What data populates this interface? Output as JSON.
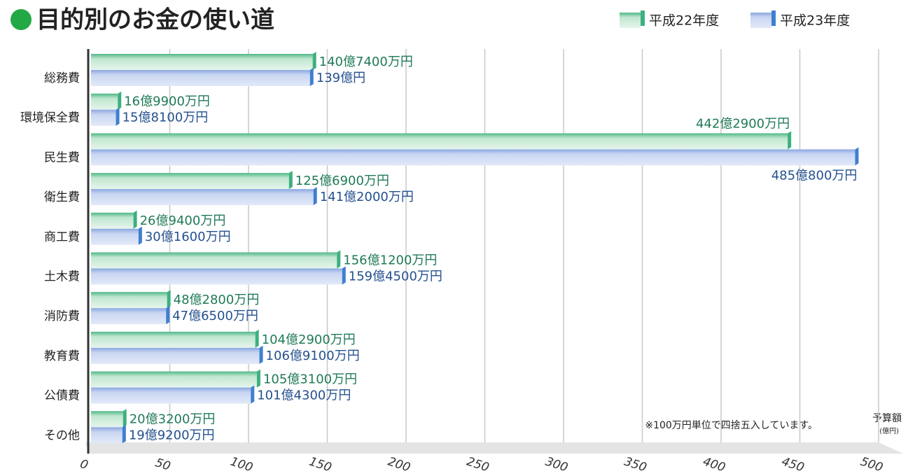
{
  "chart_data": {
    "type": "bar",
    "orientation": "horizontal",
    "title": "目的別のお金の使い道",
    "x_label": "予算額",
    "x_unit_label": "(億円)",
    "annotation": "※100万円単位で四捨五入しています。",
    "categories": [
      "総務費",
      "環境保全費",
      "民生費",
      "衛生費",
      "商工費",
      "土木費",
      "消防費",
      "教育費",
      "公債費",
      "その他"
    ],
    "series": [
      {
        "name": "平成22年度",
        "color": "#3db07f",
        "values": [
          140.74,
          16.99,
          442.29,
          125.69,
          26.94,
          156.12,
          48.28,
          104.29,
          105.31,
          20.32
        ],
        "value_labels": [
          "140億7400万円",
          "16億9900万円",
          "442億2900万円",
          "125億6900万円",
          "26億9400万円",
          "156億1200万円",
          "48億2800万円",
          "104億2900万円",
          "105億3100万円",
          "20億3200万円"
        ]
      },
      {
        "name": "平成23年度",
        "color": "#3f7fd0",
        "values": [
          139,
          15.81,
          485.08,
          141.2,
          30.16,
          159.45,
          47.65,
          106.91,
          101.43,
          19.92
        ],
        "value_labels": [
          "139億円",
          "15億8100万円",
          "485億800万円",
          "141億2000万円",
          "30億1600万円",
          "159億4500万円",
          "47億6500万円",
          "106億9100万円",
          "101億4300万円",
          "19億9200万円"
        ]
      }
    ],
    "xlim": [
      0,
      500
    ],
    "xticks": [
      0,
      50,
      100,
      150,
      200,
      250,
      300,
      350,
      400,
      450,
      500
    ],
    "grid": true,
    "legend": "top-right"
  }
}
